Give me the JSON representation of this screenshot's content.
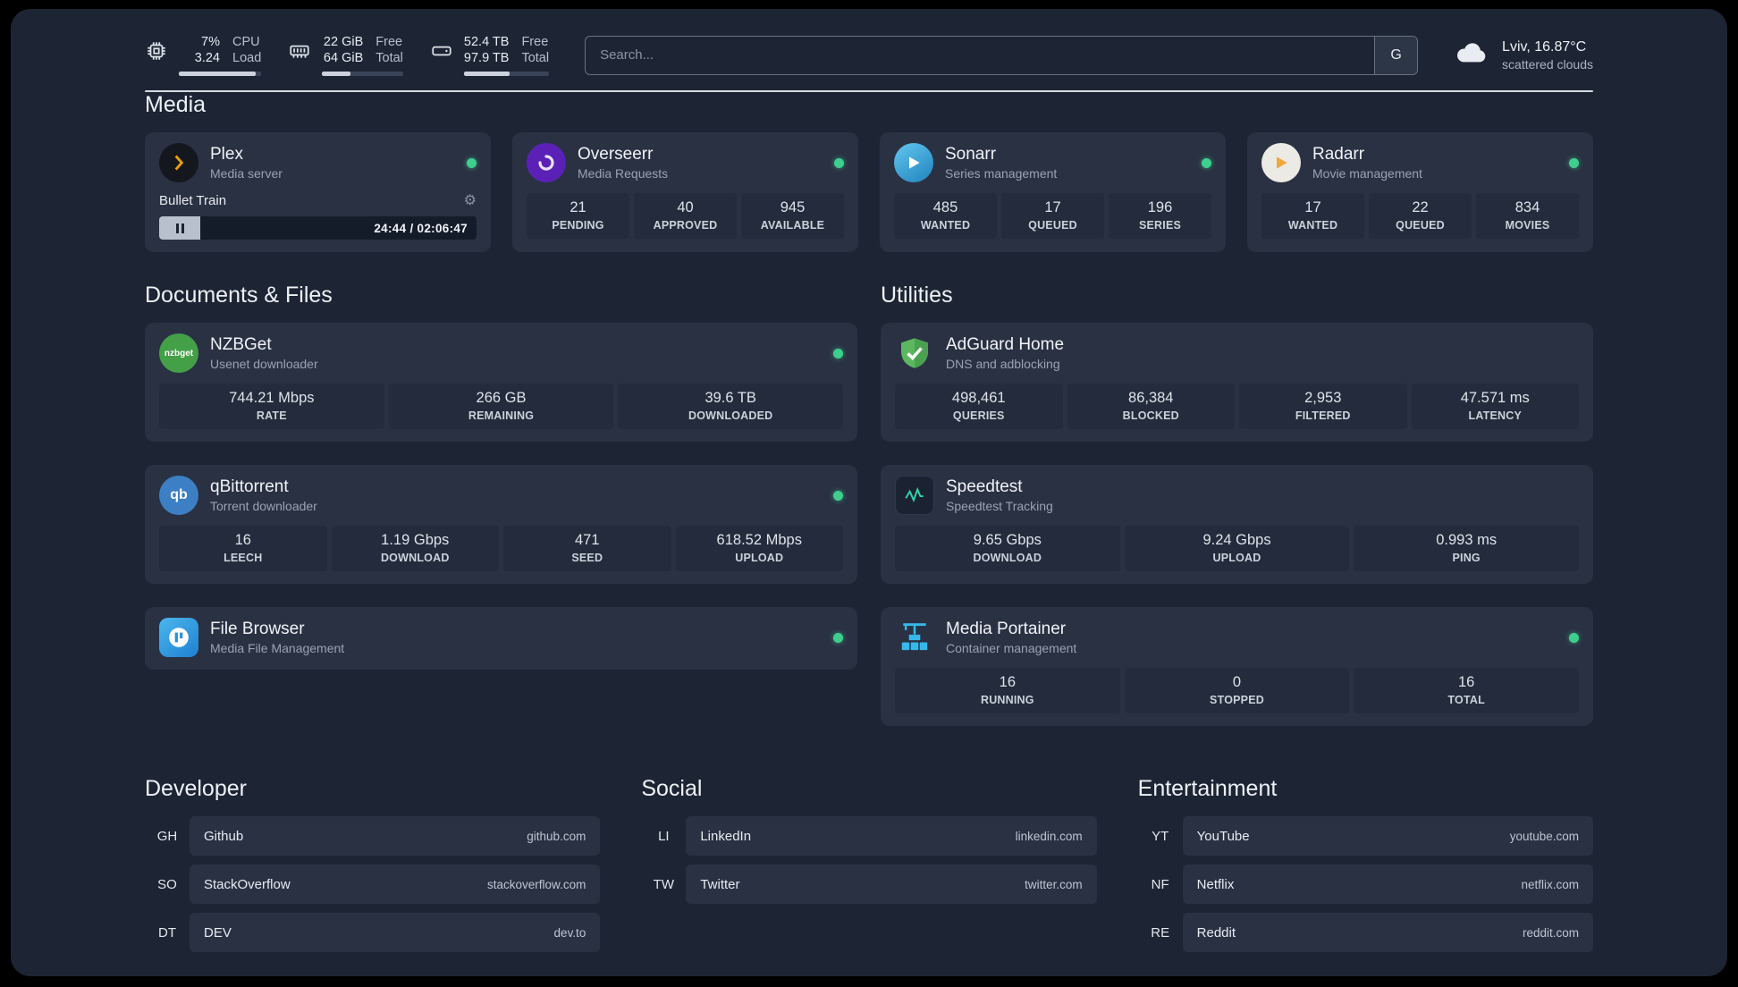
{
  "topbar": {
    "cpu": {
      "value_top": "7%",
      "value_bottom": "3.24",
      "label_top": "CPU",
      "label_bottom": "Load",
      "bar_percent": 93
    },
    "memory": {
      "value_top": "22 GiB",
      "value_bottom": "64 GiB",
      "label_top": "Free",
      "label_bottom": "Total",
      "bar_percent": 35
    },
    "disk": {
      "value_top": "52.4 TB",
      "value_bottom": "97.9 TB",
      "label_top": "Free",
      "label_bottom": "Total",
      "bar_percent": 54
    },
    "search": {
      "placeholder": "Search...",
      "provider_label": "G"
    },
    "weather": {
      "location": "Lviv, 16.87°C",
      "condition": "scattered clouds"
    }
  },
  "sections": {
    "media": {
      "title": "Media"
    },
    "documents": {
      "title": "Documents & Files"
    },
    "utilities": {
      "title": "Utilities"
    },
    "developer": {
      "title": "Developer"
    },
    "social": {
      "title": "Social"
    },
    "entertainment": {
      "title": "Entertainment"
    }
  },
  "services": {
    "plex": {
      "name": "Plex",
      "subtitle": "Media server",
      "status": "online",
      "player": {
        "title": "Bullet Train",
        "time": "24:44 / 02:06:47"
      }
    },
    "overseerr": {
      "name": "Overseerr",
      "subtitle": "Media Requests",
      "status": "online",
      "stats": [
        {
          "value": "21",
          "label": "PENDING"
        },
        {
          "value": "40",
          "label": "APPROVED"
        },
        {
          "value": "945",
          "label": "AVAILABLE"
        }
      ]
    },
    "sonarr": {
      "name": "Sonarr",
      "subtitle": "Series management",
      "status": "online",
      "stats": [
        {
          "value": "485",
          "label": "WANTED"
        },
        {
          "value": "17",
          "label": "QUEUED"
        },
        {
          "value": "196",
          "label": "SERIES"
        }
      ]
    },
    "radarr": {
      "name": "Radarr",
      "subtitle": "Movie management",
      "status": "online",
      "stats": [
        {
          "value": "17",
          "label": "WANTED"
        },
        {
          "value": "22",
          "label": "QUEUED"
        },
        {
          "value": "834",
          "label": "MOVIES"
        }
      ]
    },
    "nzbget": {
      "name": "NZBGet",
      "subtitle": "Usenet downloader",
      "status": "online",
      "stats": [
        {
          "value": "744.21 Mbps",
          "label": "RATE"
        },
        {
          "value": "266 GB",
          "label": "REMAINING"
        },
        {
          "value": "39.6 TB",
          "label": "DOWNLOADED"
        }
      ]
    },
    "qbittorrent": {
      "name": "qBittorrent",
      "subtitle": "Torrent downloader",
      "status": "online",
      "stats": [
        {
          "value": "16",
          "label": "LEECH"
        },
        {
          "value": "1.19 Gbps",
          "label": "DOWNLOAD"
        },
        {
          "value": "471",
          "label": "SEED"
        },
        {
          "value": "618.52 Mbps",
          "label": "UPLOAD"
        }
      ]
    },
    "filebrowser": {
      "name": "File Browser",
      "subtitle": "Media File Management",
      "status": "online"
    },
    "adguard": {
      "name": "AdGuard Home",
      "subtitle": "DNS and adblocking",
      "stats": [
        {
          "value": "498,461",
          "label": "QUERIES"
        },
        {
          "value": "86,384",
          "label": "BLOCKED"
        },
        {
          "value": "2,953",
          "label": "FILTERED"
        },
        {
          "value": "47.571 ms",
          "label": "LATENCY"
        }
      ]
    },
    "speedtest": {
      "name": "Speedtest",
      "subtitle": "Speedtest Tracking",
      "stats": [
        {
          "value": "9.65 Gbps",
          "label": "DOWNLOAD"
        },
        {
          "value": "9.24 Gbps",
          "label": "UPLOAD"
        },
        {
          "value": "0.993 ms",
          "label": "PING"
        }
      ]
    },
    "portainer": {
      "name": "Media Portainer",
      "subtitle": "Container management",
      "status": "online",
      "stats": [
        {
          "value": "16",
          "label": "RUNNING"
        },
        {
          "value": "0",
          "label": "STOPPED"
        },
        {
          "value": "16",
          "label": "TOTAL"
        }
      ]
    }
  },
  "icons": {
    "nzbget_text": "nzbget",
    "qbittorrent_text": "qb"
  },
  "bookmarks": {
    "developer": [
      {
        "abbr": "GH",
        "name": "Github",
        "domain": "github.com"
      },
      {
        "abbr": "SO",
        "name": "StackOverflow",
        "domain": "stackoverflow.com"
      },
      {
        "abbr": "DT",
        "name": "DEV",
        "domain": "dev.to"
      }
    ],
    "social": [
      {
        "abbr": "LI",
        "name": "LinkedIn",
        "domain": "linkedin.com"
      },
      {
        "abbr": "TW",
        "name": "Twitter",
        "domain": "twitter.com"
      }
    ],
    "entertainment": [
      {
        "abbr": "YT",
        "name": "YouTube",
        "domain": "youtube.com"
      },
      {
        "abbr": "NF",
        "name": "Netflix",
        "domain": "netflix.com"
      },
      {
        "abbr": "RE",
        "name": "Reddit",
        "domain": "reddit.com"
      }
    ]
  },
  "colors": {
    "status_online": "#3ecf8e",
    "accent_amber": "#e5a00d"
  }
}
